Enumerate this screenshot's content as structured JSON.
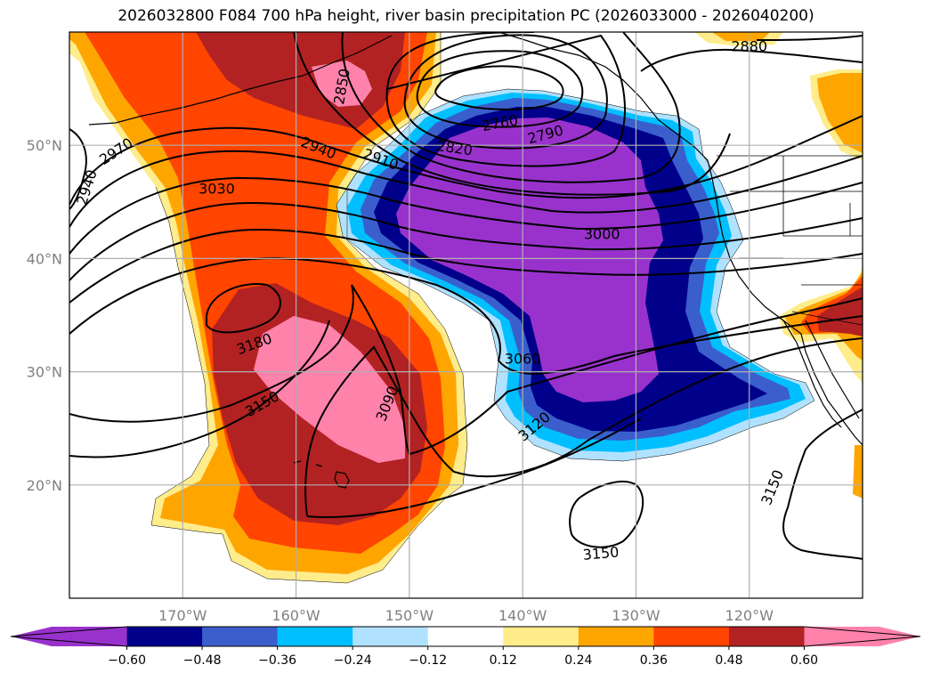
{
  "title": "2026032800 F084 700 hPa height, river basin precipitation PC (2026033000 - 2026040200)",
  "map": {
    "lon_range": [
      -180,
      -110
    ],
    "lat_range": [
      10,
      60
    ],
    "lon_ticks": [
      {
        "value": -170,
        "label": "170°W"
      },
      {
        "value": -160,
        "label": "160°W"
      },
      {
        "value": -150,
        "label": "150°W"
      },
      {
        "value": -140,
        "label": "140°W"
      },
      {
        "value": -130,
        "label": "130°W"
      },
      {
        "value": -120,
        "label": "120°W"
      }
    ],
    "lat_ticks": [
      {
        "value": 20,
        "label": "20°N"
      },
      {
        "value": 30,
        "label": "30°N"
      },
      {
        "value": 40,
        "label": "40°N"
      },
      {
        "value": 50,
        "label": "50°N"
      }
    ]
  },
  "contour_labels": [
    {
      "text": "2880",
      "lon": -120,
      "lat": 58.8,
      "angle": 0
    },
    {
      "text": "2850",
      "lon": -156,
      "lat": 55.2,
      "angle": -80
    },
    {
      "text": "2760",
      "lon": -142,
      "lat": 52.0,
      "angle": -10
    },
    {
      "text": "2790",
      "lon": -138,
      "lat": 51.0,
      "angle": -15
    },
    {
      "text": "2820",
      "lon": -146,
      "lat": 49.8,
      "angle": 8
    },
    {
      "text": "2940",
      "lon": -158,
      "lat": 49.8,
      "angle": 22
    },
    {
      "text": "2910",
      "lon": -152.5,
      "lat": 48.8,
      "angle": 20
    },
    {
      "text": "2970",
      "lon": -175.9,
      "lat": 49.5,
      "angle": -33
    },
    {
      "text": "2940",
      "lon": -178.5,
      "lat": 46.3,
      "angle": -72
    },
    {
      "text": "3030",
      "lon": -167,
      "lat": 46.2,
      "angle": 0
    },
    {
      "text": "3000",
      "lon": -133,
      "lat": 42.2,
      "angle": 0
    },
    {
      "text": "3180",
      "lon": -163.7,
      "lat": 32.5,
      "angle": -20
    },
    {
      "text": "3060",
      "lon": -140,
      "lat": 31.2,
      "angle": 0
    },
    {
      "text": "3150",
      "lon": -163,
      "lat": 27.2,
      "angle": -30
    },
    {
      "text": "3090",
      "lon": -152,
      "lat": 27.2,
      "angle": -68
    },
    {
      "text": "3120",
      "lon": -139,
      "lat": 25.2,
      "angle": -40
    },
    {
      "text": "3150",
      "lon": -118,
      "lat": 19.8,
      "angle": -68
    },
    {
      "text": "3150",
      "lon": -133.1,
      "lat": 14.0,
      "angle": -5
    }
  ],
  "colorbar": {
    "colors": [
      "#9932cc",
      "#00008b",
      "#3a5fcd",
      "#00bfff",
      "#b0e2ff",
      "#ffffff",
      "#ffec8b",
      "#ffa500",
      "#ff4500",
      "#b22222",
      "#ff82ab"
    ],
    "tick_labels": [
      "−0.60",
      "−0.48",
      "−0.36",
      "−0.24",
      "−0.12",
      "0.12",
      "0.24",
      "0.36",
      "0.48",
      "0.60"
    ]
  },
  "colors": {
    "coast": "#000000",
    "grid": "#b0b0b0",
    "contour": "#000000"
  }
}
